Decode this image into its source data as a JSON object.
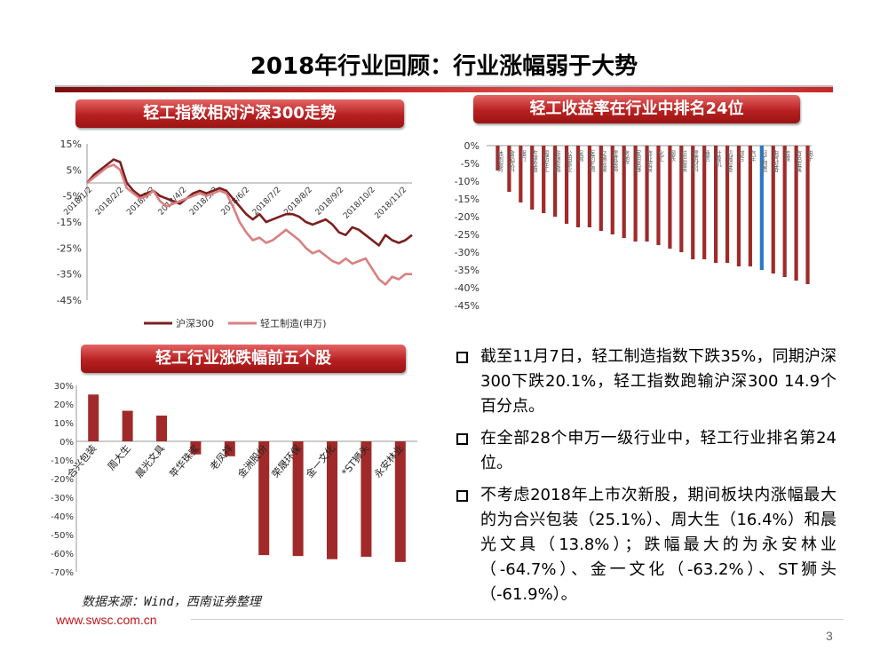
{
  "slide": {
    "title": "2018年行业回顾：行业涨幅弱于大势",
    "page_number": "3",
    "source": "数据来源：Wind，西南证券整理",
    "url": "www.swsc.com.cn"
  },
  "banners": {
    "trend": "轻工指数相对沪深300走势",
    "rank": "轻工收益率在行业中排名24位",
    "top5": "轻工行业涨跌幅前五个股"
  },
  "bullets": [
    "截至11月7日，轻工制造指数下跌35%，同期沪深300下跌20.1%，轻工指数跑输沪深300 14.9个百分点。",
    "在全部28个申万一级行业中，轻工行业排名第24位。",
    "不考虑2018年上市次新股，期间板块内涨幅最大的为合兴包装（25.1%）、周大生（16.4%）和晨光文具（13.8%）；跌幅最大的为永安林业（-64.7%）、金一文化（-63.2%）、ST狮头（-61.9%）。"
  ],
  "colors": {
    "hs300": "#7b1f1f",
    "light_industry": "#d98080",
    "bar": "#a02a2a",
    "highlight": "#2a78c8",
    "banner": "#b82020"
  },
  "chart_data": [
    {
      "id": "trend",
      "type": "line",
      "ylim": [
        -45,
        15
      ],
      "yticks": [
        15,
        5,
        -5,
        -15,
        -25,
        -35,
        -45
      ],
      "ytick_labels": [
        "15%",
        "5%",
        "-5%",
        "-15%",
        "-25%",
        "-35%",
        "-45%"
      ],
      "x_labels": [
        "2018/1/2",
        "2018/2/2",
        "2018/3/2",
        "2018/4/2",
        "2018/5/2",
        "2018/6/2",
        "2018/7/2",
        "2018/8/2",
        "2018/9/2",
        "2018/10/2",
        "2018/11/2"
      ],
      "series": [
        {
          "name": "沪深300",
          "values": [
            0,
            3,
            5,
            7,
            9,
            8,
            0,
            -3,
            -5,
            -4,
            -3,
            -5,
            -6,
            -7,
            -8,
            -6,
            -4,
            -3,
            -4,
            -3,
            -2,
            -3,
            -6,
            -9,
            -12,
            -14,
            -12,
            -15,
            -14,
            -13,
            -12,
            -12,
            -13,
            -15,
            -16,
            -15,
            -14,
            -16,
            -19,
            -20,
            -17,
            -18,
            -20,
            -22,
            -24,
            -20,
            -22,
            -23,
            -22,
            -20
          ]
        },
        {
          "name": "轻工制造(申万)",
          "values": [
            0,
            2,
            4,
            6,
            7,
            5,
            -2,
            -4,
            -6,
            -5,
            -3,
            -7,
            -9,
            -8,
            -7,
            -6,
            -5,
            -4,
            -5,
            -4,
            -3,
            -4,
            -9,
            -15,
            -19,
            -22,
            -21,
            -23,
            -22,
            -20,
            -18,
            -20,
            -22,
            -25,
            -27,
            -26,
            -28,
            -30,
            -31,
            -29,
            -31,
            -30,
            -29,
            -33,
            -37,
            -39,
            -36,
            -37,
            -35,
            -35
          ]
        }
      ]
    },
    {
      "id": "rank",
      "type": "bar",
      "ylim": [
        -45,
        0
      ],
      "yticks": [
        0,
        -5,
        -10,
        -15,
        -20,
        -25,
        -30,
        -35,
        -40,
        -45
      ],
      "ytick_labels": [
        "0%",
        "-5%",
        "-10%",
        "-15%",
        "-20%",
        "-25%",
        "-30%",
        "-35%",
        "-40%",
        "-45%"
      ],
      "highlight_index": 23,
      "categories": [
        "休闲服务",
        "食品饮料",
        "银行",
        "农林牧渔",
        "国防军工",
        "非银金融",
        "公用事业",
        "采掘",
        "医药生物",
        "交通运输",
        "建筑装饰",
        "房地产",
        "家用电器",
        "商业贸易",
        "化工",
        "钢铁",
        "纺织服装",
        "建筑材料",
        "通信",
        "计算机",
        "机械设备",
        "综合",
        "汽车",
        "轻工制造",
        "电气设备",
        "传媒",
        "有色金属",
        "电子"
      ],
      "values": [
        -7,
        -13,
        -16,
        -18,
        -19,
        -20,
        -22,
        -23,
        -23,
        -24,
        -25,
        -26,
        -27,
        -27,
        -28,
        -29,
        -30,
        -32,
        -32,
        -33,
        -33,
        -34,
        -34,
        -35,
        -36,
        -37,
        -38,
        -39
      ]
    },
    {
      "id": "top5",
      "type": "bar",
      "ylim": [
        -70,
        30
      ],
      "yticks": [
        30,
        20,
        10,
        0,
        -10,
        -20,
        -30,
        -40,
        -50,
        -60,
        -70
      ],
      "ytick_labels": [
        "30%",
        "20%",
        "10%",
        "0%",
        "-10%",
        "-20%",
        "-30%",
        "-40%",
        "-50%",
        "-60%",
        "-70%"
      ],
      "categories": [
        "合兴包装",
        "周大生",
        "晨光文具",
        "苹华珠宝",
        "老凤祥",
        "金洲股份",
        "荣晟环保",
        "金一文化",
        "*ST狮头",
        "永安林业"
      ],
      "values": [
        25.1,
        16.4,
        13.8,
        -7,
        -8,
        -61,
        -61.5,
        -63.2,
        -61.9,
        -64.7
      ]
    }
  ]
}
